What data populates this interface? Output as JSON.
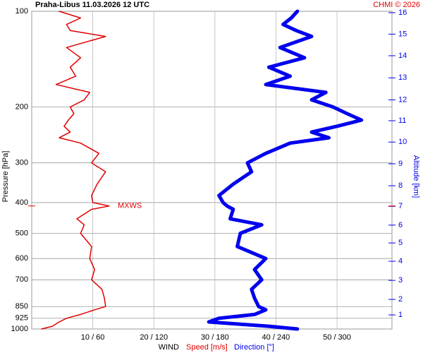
{
  "chart_data": {
    "type": "line",
    "title": "Praha-Libus    11.03.2026 12 UTC",
    "source": "CHMI © 2026",
    "ylabel": "Pressure [hPa]",
    "y2label": "Altitude [km]",
    "xlabel": "WIND",
    "y": [
      1000,
      980,
      950,
      925,
      900,
      870,
      850,
      800,
      750,
      700,
      650,
      600,
      550,
      500,
      470,
      450,
      420,
      410,
      400,
      380,
      350,
      320,
      300,
      280,
      260,
      250,
      240,
      230,
      220,
      210,
      200,
      190,
      180,
      170,
      160,
      150,
      140,
      130,
      120,
      115,
      110,
      105,
      100
    ],
    "series": [
      {
        "name": "Speed [m/s]",
        "color": "#e00000",
        "axis": "x",
        "values": [
          1.6,
          3.4,
          4.5,
          5.7,
          8,
          10.3,
          12.1,
          11.9,
          11.5,
          9.8,
          10.3,
          9.5,
          9.8,
          8,
          8.6,
          7.4,
          9.8,
          12.7,
          10,
          9.8,
          10.7,
          12.1,
          9.8,
          11,
          8,
          4.5,
          6.3,
          5.3,
          6,
          6.9,
          6.3,
          8.6,
          9.5,
          4,
          7.2,
          6.3,
          8,
          5.7,
          12.1,
          6.3,
          5.7,
          8,
          4.5
        ]
      },
      {
        "name": "Direction [°]",
        "color": "#0000ee",
        "axis": "x2",
        "values": [
          261,
          233,
          174,
          184,
          219,
          230,
          223,
          219,
          216,
          226,
          219,
          230,
          202,
          205,
          226,
          195,
          198,
          192,
          188,
          184,
          198,
          216,
          212,
          230,
          254,
          292,
          275,
          300,
          324,
          310,
          296,
          275,
          289,
          230,
          254,
          233,
          268,
          244,
          275,
          260,
          247,
          255,
          261
        ]
      }
    ],
    "ylim": [
      1000,
      100
    ],
    "log_y": true,
    "yticks": [
      100,
      200,
      300,
      400,
      500,
      600,
      700,
      850,
      925,
      1000
    ],
    "xlim": [
      0,
      59
    ],
    "x2lim": [
      0,
      354
    ],
    "xticks": [
      {
        "value": 10,
        "label": "10 / 60"
      },
      {
        "value": 20,
        "label": "20 / 120"
      },
      {
        "value": 30,
        "label": "30 / 180"
      },
      {
        "value": 40,
        "label": "40 / 240"
      },
      {
        "value": 50,
        "label": "50 / 300"
      }
    ],
    "y2ticks": [
      1,
      2,
      3,
      4,
      5,
      6,
      7,
      8,
      9,
      10,
      11,
      12,
      13,
      14,
      15,
      16
    ],
    "y2tick_pressures": [
      903,
      807,
      703,
      612,
      536,
      471,
      411,
      354,
      302,
      258,
      221,
      190,
      162,
      138,
      118,
      101
    ],
    "annotation": {
      "text": "MXWS",
      "pressure": 410
    },
    "grid": true
  }
}
